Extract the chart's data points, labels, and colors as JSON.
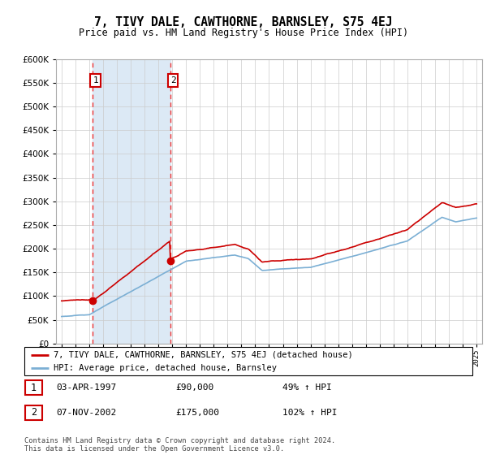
{
  "title": "7, TIVY DALE, CAWTHORNE, BARNSLEY, S75 4EJ",
  "subtitle": "Price paid vs. HM Land Registry's House Price Index (HPI)",
  "legend_line1": "7, TIVY DALE, CAWTHORNE, BARNSLEY, S75 4EJ (detached house)",
  "legend_line2": "HPI: Average price, detached house, Barnsley",
  "footer": "Contains HM Land Registry data © Crown copyright and database right 2024.\nThis data is licensed under the Open Government Licence v3.0.",
  "sale1_date": "03-APR-1997",
  "sale1_price": 90000,
  "sale1_label": "49% ↑ HPI",
  "sale2_date": "07-NOV-2002",
  "sale2_price": 175000,
  "sale2_label": "102% ↑ HPI",
  "hpi_color": "#7bafd4",
  "property_color": "#cc0000",
  "sale_marker_color": "#cc0000",
  "vline_color": "#ee3333",
  "shade_color": "#dce9f5",
  "ylim": [
    0,
    600000
  ],
  "ytick_step": 50000,
  "xstart": 1995,
  "xend": 2025,
  "sale1_x": 1997.25,
  "sale2_x": 2002.85
}
